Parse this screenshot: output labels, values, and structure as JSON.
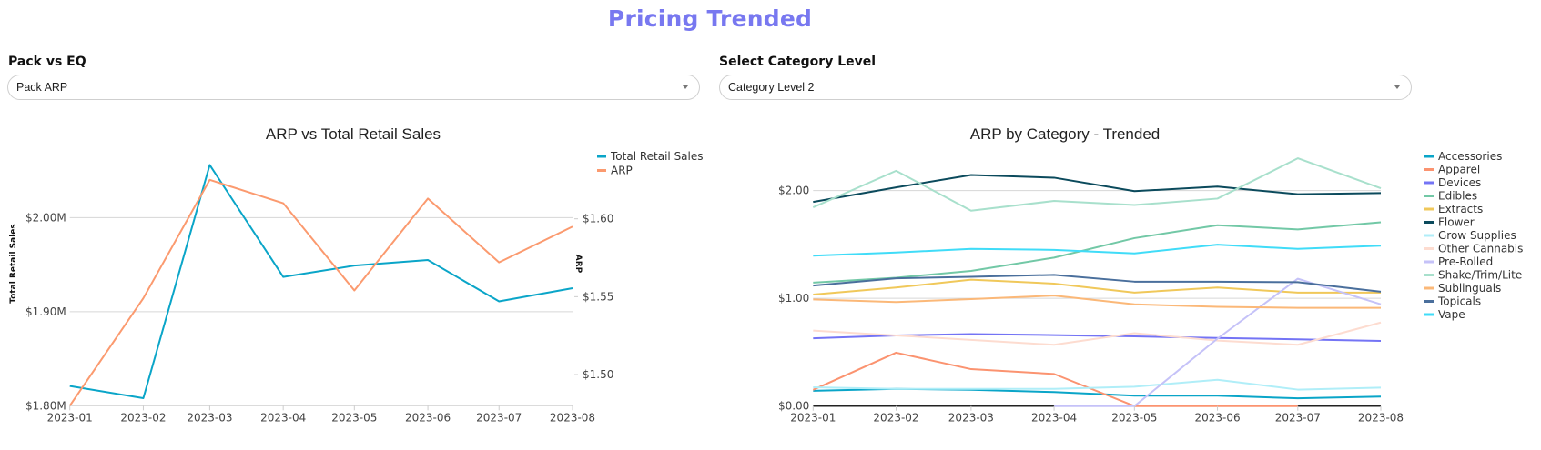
{
  "header": {
    "title": "Pricing Trended"
  },
  "controls": {
    "pack_vs_eq": {
      "label": "Pack vs EQ",
      "selected": "Pack ARP"
    },
    "category_level": {
      "label": "Select Category Level",
      "selected": "Category Level 2"
    }
  },
  "chart_data": [
    {
      "type": "line",
      "title": "ARP vs Total Retail Sales",
      "x": [
        "2023-01",
        "2023-02",
        "2023-03",
        "2023-04",
        "2023-05",
        "2023-06",
        "2023-07",
        "2023-08"
      ],
      "xlabel": "",
      "ylabel": "Total Retail Sales",
      "y2label": "ARP",
      "ylim": [
        1.8,
        2.07
      ],
      "y2lim": [
        1.48,
        1.643
      ],
      "yticks": [
        {
          "value": 1.8,
          "label": "$1.80M"
        },
        {
          "value": 1.9,
          "label": "$1.90M"
        },
        {
          "value": 2.0,
          "label": "$2.00M"
        }
      ],
      "y2ticks": [
        {
          "value": 1.5,
          "label": "$1.50"
        },
        {
          "value": 1.55,
          "label": "$1.55"
        },
        {
          "value": 1.6,
          "label": "$1.60"
        }
      ],
      "grid": true,
      "legend_position": "top-right",
      "series": [
        {
          "name": "Total Retail Sales",
          "axis": "left",
          "unit": "$M",
          "color": "#0aa5c8",
          "values": [
            1.821,
            1.808,
            2.056,
            1.937,
            1.949,
            1.955,
            1.911,
            1.925
          ]
        },
        {
          "name": "ARP",
          "axis": "right",
          "unit": "$",
          "color": "#fb9a6f",
          "values": [
            1.48,
            1.549,
            1.625,
            1.61,
            1.554,
            1.613,
            1.572,
            1.595
          ]
        }
      ]
    },
    {
      "type": "line",
      "title": "ARP by Category - Trended",
      "x": [
        "2023-01",
        "2023-02",
        "2023-03",
        "2023-04",
        "2023-05",
        "2023-06",
        "2023-07",
        "2023-08"
      ],
      "xlabel": "",
      "ylabel": "",
      "ylim": [
        0,
        2.36
      ],
      "yticks": [
        {
          "value": 0,
          "label": "$0.00"
        },
        {
          "value": 1,
          "label": "$1.00"
        },
        {
          "value": 2,
          "label": "$2.00"
        }
      ],
      "grid": true,
      "legend_position": "right",
      "series": [
        {
          "name": "Accessories",
          "color": "#0aa5c8",
          "values": [
            0.142,
            0.16,
            0.151,
            0.13,
            0.097,
            0.097,
            0.072,
            0.088
          ]
        },
        {
          "name": "Apparel",
          "color": "#fb9370",
          "values": [
            0.151,
            0.496,
            0.343,
            0.298,
            0.0,
            0.0,
            0.0,
            null
          ]
        },
        {
          "name": "Devices",
          "color": "#7474f5",
          "values": [
            0.629,
            0.656,
            0.668,
            0.659,
            0.647,
            0.632,
            0.62,
            0.605
          ]
        },
        {
          "name": "Edibles",
          "color": "#72c8a6",
          "values": [
            1.146,
            1.191,
            1.255,
            1.378,
            1.559,
            1.679,
            1.64,
            1.706
          ]
        },
        {
          "name": "Extracts",
          "color": "#f0c85a",
          "values": [
            1.035,
            1.101,
            1.173,
            1.137,
            1.053,
            1.101,
            1.053,
            1.053
          ]
        },
        {
          "name": "Flower",
          "color": "#0b4a5c",
          "values": [
            1.895,
            2.03,
            2.145,
            2.12,
            1.995,
            2.037,
            1.967,
            1.977
          ]
        },
        {
          "name": "Grow Supplies",
          "color": "#b0eef8",
          "values": [
            0.175,
            0.16,
            0.16,
            0.16,
            0.18,
            0.244,
            0.153,
            0.171
          ]
        },
        {
          "name": "Other Cannabis",
          "color": "#fddcd0",
          "values": [
            0.701,
            0.656,
            0.614,
            0.569,
            0.677,
            0.608,
            0.569,
            0.776
          ]
        },
        {
          "name": "Pre-Rolled",
          "color": "#c5c2f8",
          "values": [
            null,
            null,
            null,
            0.0,
            0.0,
            0.626,
            1.182,
            0.945
          ]
        },
        {
          "name": "Shake/Trim/Lite",
          "color": "#a8e0cc",
          "values": [
            1.845,
            2.184,
            1.814,
            1.904,
            1.866,
            1.926,
            2.3,
            2.022
          ]
        },
        {
          "name": "Sublinguals",
          "color": "#fbb878",
          "values": [
            0.99,
            0.966,
            0.993,
            1.026,
            0.945,
            0.921,
            0.912,
            0.912
          ]
        },
        {
          "name": "Topicals",
          "color": "#4a6f9c",
          "values": [
            1.119,
            1.186,
            1.2,
            1.218,
            1.155,
            1.155,
            1.15,
            1.062
          ]
        },
        {
          "name": "Vape",
          "color": "#40dcf8",
          "values": [
            1.396,
            1.426,
            1.459,
            1.45,
            1.417,
            1.498,
            1.459,
            1.489
          ]
        }
      ]
    }
  ]
}
